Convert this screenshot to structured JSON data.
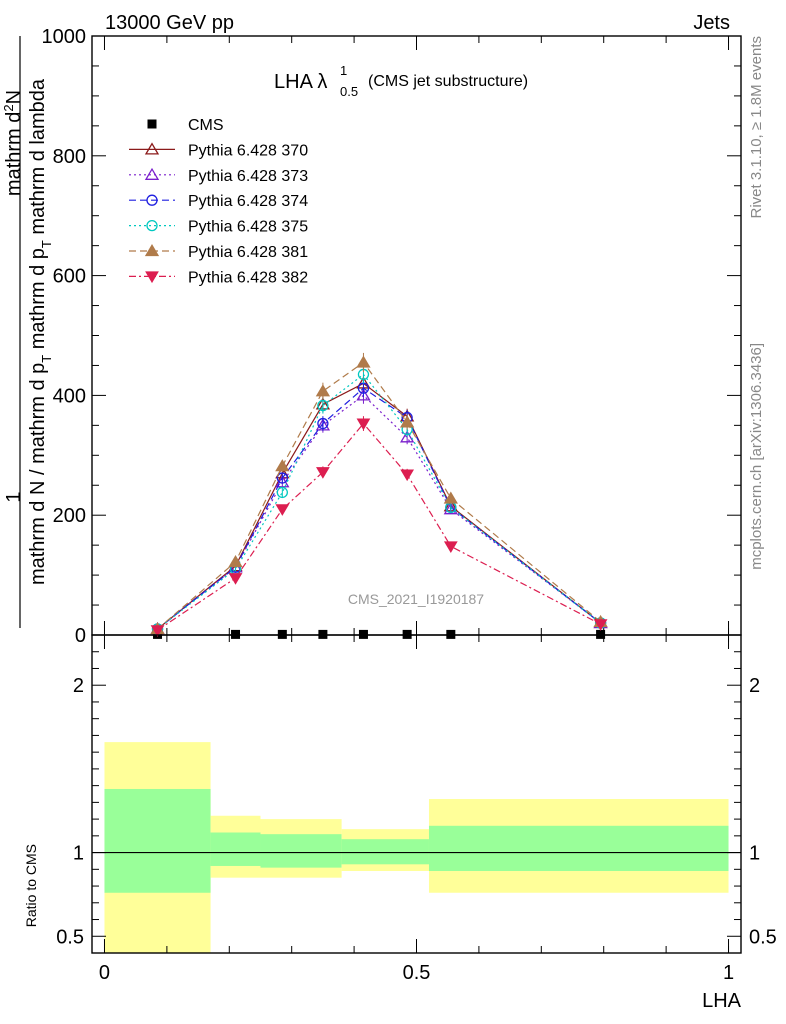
{
  "header": {
    "left": "13000 GeV pp",
    "right": "Jets"
  },
  "side": {
    "rivet": "Rivet 3.1.10, ≥ 1.8M events",
    "mcplots": "mcplots.cern.ch [arXiv:1306.3436]"
  },
  "main_plot": {
    "title": "LHA λ",
    "title_sup": "1",
    "title_sub": "0.5",
    "title_suffix": "(CMS jet substructure)",
    "ylabel_top": "1",
    "ylabel_num": "mathrm d",
    "ylabel_num_sup": "2",
    "ylabel_num_tail": "N",
    "ylabel_den": "mathrm d N / mathrm d p",
    "ylabel_den_sub": "T",
    "ylabel_den_tail": " mathrm d p",
    "ylabel_den_sub2": "T",
    "ylabel_den_tail2": " mathrm d lambda",
    "watermark": "CMS_2021_I1920187"
  },
  "ratio_plot": {
    "ylabel": "Ratio to CMS",
    "xlabel": "LHA"
  },
  "chart_data": {
    "type": "line",
    "x_edges": [
      0.0,
      0.17,
      0.25,
      0.38,
      0.52,
      1.0
    ],
    "main": {
      "ylim": [
        0,
        1000
      ],
      "yticks": [
        0,
        200,
        400,
        600,
        800,
        1000
      ],
      "xlim": [
        -0.02,
        1.02
      ],
      "xticks": [
        0,
        0.5,
        1
      ],
      "series": [
        {
          "name": "CMS",
          "color": "#000000",
          "marker": "square",
          "line": "none",
          "x": [
            0.085,
            0.21,
            0.285,
            0.35,
            0.415,
            0.485,
            0.555,
            0.795
          ],
          "y": [
            1,
            1,
            1,
            1,
            1,
            1,
            1,
            1
          ]
        },
        {
          "name": "Pythia 6.428 370",
          "color": "#8b1a1a",
          "marker": "triangle-open",
          "line": "solid",
          "x": [
            0.085,
            0.21,
            0.285,
            0.35,
            0.415,
            0.485,
            0.555,
            0.795
          ],
          "y": [
            10,
            115,
            270,
            385,
            420,
            365,
            215,
            20
          ]
        },
        {
          "name": "Pythia 6.428 373",
          "color": "#7a1ecc",
          "marker": "triangle-open",
          "line": "dotted",
          "x": [
            0.085,
            0.21,
            0.285,
            0.35,
            0.415,
            0.485,
            0.555,
            0.795
          ],
          "y": [
            10,
            113,
            255,
            350,
            400,
            330,
            210,
            20
          ]
        },
        {
          "name": "Pythia 6.428 374",
          "color": "#1f1fe0",
          "marker": "circle-open",
          "line": "dashed",
          "x": [
            0.085,
            0.21,
            0.285,
            0.35,
            0.415,
            0.485,
            0.555,
            0.795
          ],
          "y": [
            10,
            113,
            262,
            353,
            412,
            363,
            213,
            20
          ]
        },
        {
          "name": "Pythia 6.428 375",
          "color": "#00c8c0",
          "marker": "circle-open",
          "line": "dotted",
          "x": [
            0.085,
            0.21,
            0.285,
            0.35,
            0.415,
            0.485,
            0.555,
            0.795
          ],
          "y": [
            10,
            110,
            238,
            383,
            435,
            343,
            213,
            20
          ]
        },
        {
          "name": "Pythia 6.428 381",
          "color": "#b07b4a",
          "marker": "triangle-filled",
          "line": "dashed",
          "x": [
            0.085,
            0.21,
            0.285,
            0.35,
            0.415,
            0.485,
            0.555,
            0.795
          ],
          "y": [
            10,
            122,
            282,
            407,
            455,
            355,
            228,
            22
          ]
        },
        {
          "name": "Pythia 6.428 382",
          "color": "#dc1e50",
          "marker": "triangle-down-filled",
          "line": "dashdot",
          "x": [
            0.085,
            0.21,
            0.285,
            0.35,
            0.415,
            0.485,
            0.555,
            0.795
          ],
          "y": [
            8,
            95,
            210,
            272,
            353,
            268,
            148,
            18
          ]
        }
      ]
    },
    "ratio": {
      "ylim": [
        0.4,
        2.3
      ],
      "yticks": [
        0.5,
        1,
        2
      ],
      "bands": [
        {
          "x0": 0.0,
          "x1": 0.17,
          "inner": [
            0.76,
            1.38
          ],
          "outer": [
            0.4,
            1.66
          ]
        },
        {
          "x0": 0.17,
          "x1": 0.25,
          "inner": [
            0.92,
            1.12
          ],
          "outer": [
            0.85,
            1.22
          ]
        },
        {
          "x0": 0.25,
          "x1": 0.38,
          "inner": [
            0.91,
            1.11
          ],
          "outer": [
            0.85,
            1.2
          ]
        },
        {
          "x0": 0.38,
          "x1": 0.52,
          "inner": [
            0.93,
            1.08
          ],
          "outer": [
            0.89,
            1.14
          ]
        },
        {
          "x0": 0.52,
          "x1": 1.0,
          "inner": [
            0.89,
            1.16
          ],
          "outer": [
            0.76,
            1.32
          ]
        }
      ]
    }
  }
}
